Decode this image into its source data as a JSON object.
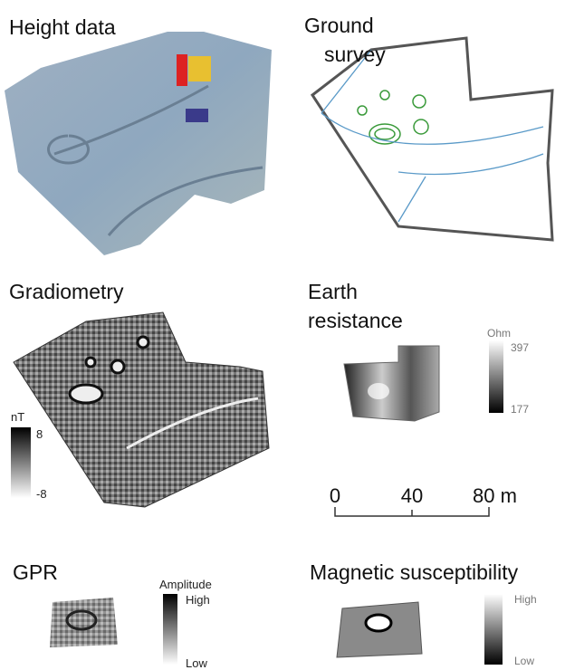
{
  "height_data": {
    "title": "Height data"
  },
  "ground_survey": {
    "title": [
      "Ground",
      "survey"
    ]
  },
  "gradiometry": {
    "title": "Gradiometry",
    "legend": {
      "unit": "nT",
      "max": "8",
      "min": "-8"
    }
  },
  "earth_resistance": {
    "title": [
      "Earth",
      "resistance"
    ],
    "legend": {
      "unit": "Ohm",
      "max": "397",
      "min": "177"
    }
  },
  "scale_bar": {
    "labels": [
      "0",
      "40",
      "80 m"
    ]
  },
  "gpr": {
    "title": "GPR",
    "legend": {
      "unit": "Amplitude",
      "max": "High",
      "min": "Low"
    }
  },
  "magnetic_susceptibility": {
    "title": "Magnetic susceptibility",
    "legend": {
      "max": "High",
      "min": "Low"
    }
  }
}
